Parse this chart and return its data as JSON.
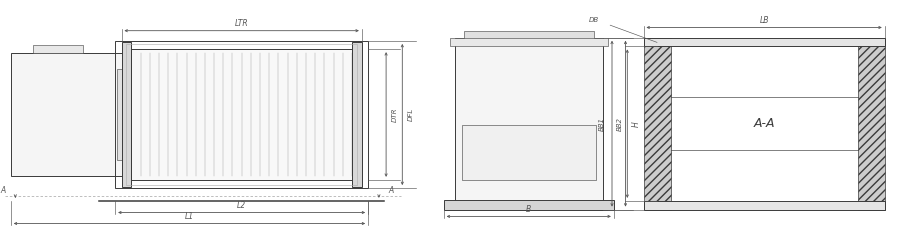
{
  "bg_color": "#ffffff",
  "line_color": "#3a3a3a",
  "dim_color": "#555555",
  "fig_width": 9.0,
  "fig_height": 2.29,
  "dpi": 100,
  "ltr_label": "LTR",
  "l2_label": "L2",
  "l1_label": "L1",
  "dtr_label": "DTR",
  "dfl_label": "DFL",
  "a_label": "A",
  "b_label": "B",
  "h_label": "H",
  "lb_label": "LB",
  "bb1_label": "BB1",
  "bb2_label": "BB2",
  "db_label": "DB",
  "aa_label": "A-A"
}
